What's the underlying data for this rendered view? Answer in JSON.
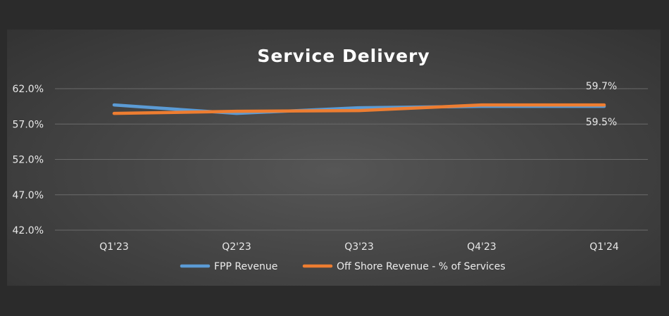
{
  "chart_data": {
    "type": "line",
    "title": "Service Delivery",
    "categories": [
      "Q1'23",
      "Q2'23",
      "Q3'23",
      "Q4'23",
      "Q1'24"
    ],
    "ylim": [
      42.0,
      62.0
    ],
    "yticks": [
      "62.0%",
      "57.0%",
      "52.0%",
      "47.0%",
      "42.0%"
    ],
    "ytick_values": [
      62.0,
      57.0,
      52.0,
      47.0,
      42.0
    ],
    "grid": true,
    "legend_position": "bottom",
    "series": [
      {
        "name": "FPP Revenue",
        "color": "#5b9bd5",
        "values": [
          59.7,
          58.5,
          59.3,
          59.5,
          59.5
        ],
        "end_label": "59.5%"
      },
      {
        "name": "Off Shore Revenue - % of Services",
        "color": "#ed7d31",
        "values": [
          58.5,
          58.8,
          58.9,
          59.7,
          59.7
        ],
        "end_label": "59.7%"
      }
    ]
  }
}
